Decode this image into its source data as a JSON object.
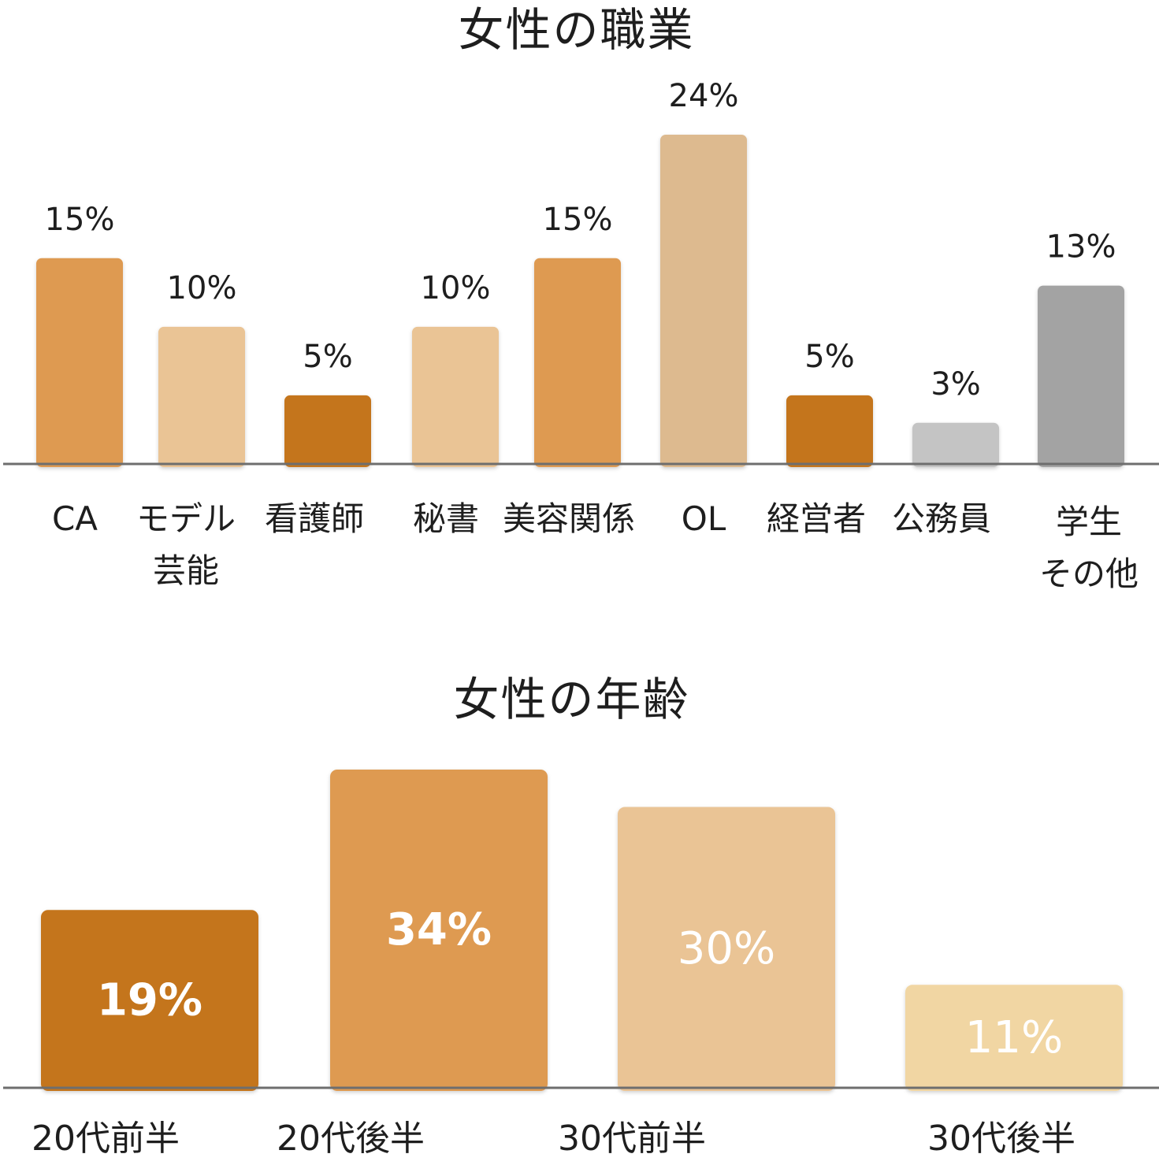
{
  "chart_data": [
    {
      "type": "bar",
      "title": "女性の職業",
      "categories": [
        "CA",
        "モデル\n芸能",
        "看護師",
        "秘書",
        "美容関係",
        "OL",
        "経営者",
        "公務員",
        "学生\nその他"
      ],
      "values": [
        15,
        10,
        5,
        10,
        15,
        24,
        5,
        3,
        13
      ],
      "data_labels": [
        "15%",
        "10%",
        "5%",
        "10%",
        "15%",
        "24%",
        "5%",
        "3%",
        "13%"
      ],
      "colors": [
        "#DE9A51",
        "#EAC495",
        "#C4751C",
        "#EAC495",
        "#DE9A51",
        "#DDBA8F",
        "#C4751C",
        "#C4C4C4",
        "#A3A3A3"
      ],
      "unit": "%",
      "ylim": [
        0,
        26
      ],
      "grid": false,
      "legend": "none"
    },
    {
      "type": "bar",
      "title": "女性の年齢",
      "categories": [
        "20代前半",
        "20代後半",
        "30代前半",
        "30代後半"
      ],
      "values": [
        19,
        34,
        30,
        11
      ],
      "data_labels": [
        "19%",
        "34%",
        "30%",
        "11%"
      ],
      "colors": [
        "#C4751C",
        "#DE9A51",
        "#EAC495",
        "#F1D6A3"
      ],
      "unit": "%",
      "ylim": [
        0,
        36
      ],
      "grid": false,
      "legend": "none"
    }
  ]
}
